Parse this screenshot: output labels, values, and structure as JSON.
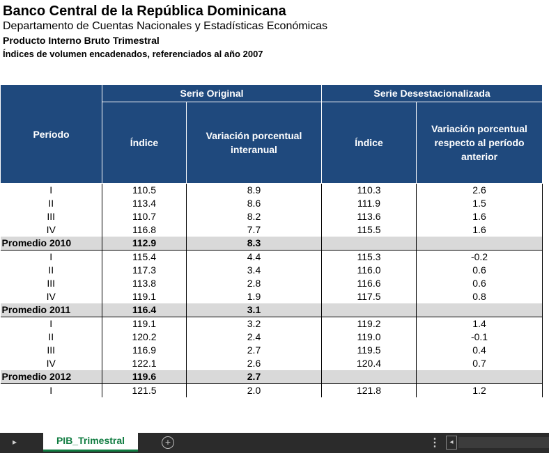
{
  "header": {
    "title": "Banco Central de la República Dominicana",
    "department": "Departamento de Cuentas Nacionales y Estadísticas Económicas",
    "product": "Producto Interno Bruto Trimestral",
    "subtitle": "Índices de volumen encadenados, referenciados al año 2007"
  },
  "table": {
    "group_original": "Serie Original",
    "group_desest": "Serie Desestacionalizada",
    "col_periodo": "Período",
    "col_indice_orig": "Índice",
    "col_var_interanual": "Variación porcentual interanual",
    "col_indice_desest": "Índice",
    "col_var_anterior": "Variación porcentual respecto al período anterior",
    "rows": [
      {
        "p": "I",
        "i": "110.5",
        "v": "8.9",
        "d": "110.3",
        "a": "2.6"
      },
      {
        "p": "II",
        "i": "113.4",
        "v": "8.6",
        "d": "111.9",
        "a": "1.5"
      },
      {
        "p": "III",
        "i": "110.7",
        "v": "8.2",
        "d": "113.6",
        "a": "1.6"
      },
      {
        "p": "IV",
        "i": "116.8",
        "v": "7.7",
        "d": "115.5",
        "a": "1.6"
      },
      {
        "p": "Promedio 2010",
        "i": "112.9",
        "v": "8.3",
        "d": "",
        "a": ""
      },
      {
        "p": "I",
        "i": "115.4",
        "v": "4.4",
        "d": "115.3",
        "a": "-0.2"
      },
      {
        "p": "II",
        "i": "117.3",
        "v": "3.4",
        "d": "116.0",
        "a": "0.6"
      },
      {
        "p": "III",
        "i": "113.8",
        "v": "2.8",
        "d": "116.6",
        "a": "0.6"
      },
      {
        "p": "IV",
        "i": "119.1",
        "v": "1.9",
        "d": "117.5",
        "a": "0.8"
      },
      {
        "p": "Promedio 2011",
        "i": "116.4",
        "v": "3.1",
        "d": "",
        "a": ""
      },
      {
        "p": "I",
        "i": "119.1",
        "v": "3.2",
        "d": "119.2",
        "a": "1.4"
      },
      {
        "p": "II",
        "i": "120.2",
        "v": "2.4",
        "d": "119.0",
        "a": "-0.1"
      },
      {
        "p": "III",
        "i": "116.9",
        "v": "2.7",
        "d": "119.5",
        "a": "0.4"
      },
      {
        "p": "IV",
        "i": "122.1",
        "v": "2.6",
        "d": "120.4",
        "a": "0.7"
      },
      {
        "p": "Promedio 2012",
        "i": "119.6",
        "v": "2.7",
        "d": "",
        "a": ""
      },
      {
        "p": "I",
        "i": "121.5",
        "v": "2.0",
        "d": "121.8",
        "a": "1.2"
      }
    ]
  },
  "sheet_tabs": {
    "active": "PIB_Trimestral",
    "add_symbol": "+",
    "nav_left": "▸",
    "more": "⋮",
    "scroll_left": "◂"
  }
}
